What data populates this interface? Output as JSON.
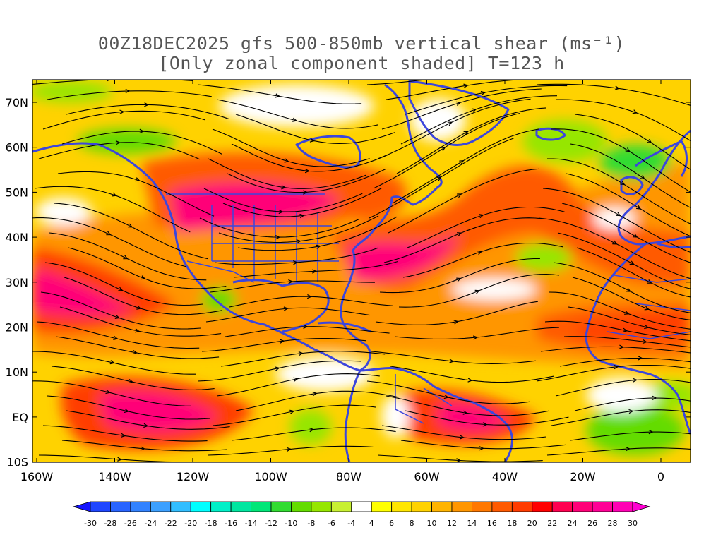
{
  "title_line1": "00Z18DEC2025 gfs 500-850mb vertical shear (ms⁻¹)",
  "title_line2": "[Only zonal component shaded] T=123 h",
  "lat_labels": [
    "70N",
    "60N",
    "50N",
    "40N",
    "30N",
    "20N",
    "10N",
    "EQ",
    "10S"
  ],
  "lon_labels": [
    "160W",
    "140W",
    "120W",
    "100W",
    "80W",
    "60W",
    "40W",
    "20W",
    "0"
  ],
  "colorbar": {
    "labels": [
      "-30",
      "-28",
      "-26",
      "-24",
      "-22",
      "-20",
      "-18",
      "-16",
      "-14",
      "-12",
      "-10",
      "-8",
      "-6",
      "-4",
      "4",
      "6",
      "8",
      "10",
      "12",
      "14",
      "16",
      "18",
      "20",
      "22",
      "24",
      "26",
      "28",
      "30"
    ],
    "colors": [
      "#1414ff",
      "#1e46ff",
      "#2864ff",
      "#3282ff",
      "#3ca0ff",
      "#32beff",
      "#00ffff",
      "#00f0c8",
      "#00e6a0",
      "#00e678",
      "#32dc32",
      "#64dc00",
      "#96e600",
      "#c8f032",
      "#ffffff",
      "#ffff00",
      "#ffe600",
      "#ffd200",
      "#ffb400",
      "#ff9600",
      "#ff7800",
      "#ff5a00",
      "#ff3c00",
      "#ff0000",
      "#ff0050",
      "#ff0078",
      "#ff0096",
      "#ff00b4",
      "#ff00d2"
    ]
  },
  "map_style": {
    "coast_color": "#3c46dc",
    "stream_color": "#000000",
    "frame_color": "#000000"
  }
}
